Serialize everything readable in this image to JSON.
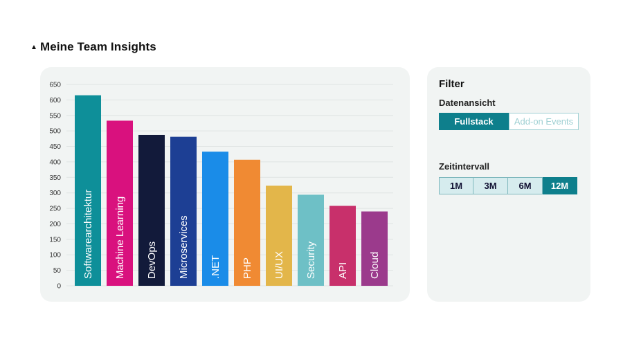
{
  "section": {
    "title": "Meine Team Insights"
  },
  "filter": {
    "title": "Filter",
    "datenansicht": {
      "label": "Datenansicht",
      "options": [
        "Fullstack",
        "Add-on Events"
      ],
      "selected": "Fullstack"
    },
    "zeitintervall": {
      "label": "Zeitintervall",
      "options": [
        "1M",
        "3M",
        "6M",
        "12M"
      ],
      "selected": "12M"
    }
  },
  "colors": {
    "accent": "#0e7f8c",
    "card_bg": "#f1f4f3"
  },
  "chart_data": {
    "type": "bar",
    "ylim": [
      0,
      650
    ],
    "yticks": [
      0,
      50,
      100,
      150,
      200,
      250,
      300,
      350,
      400,
      450,
      500,
      550,
      600,
      650
    ],
    "grid": true,
    "categories": [
      "Softwarearchitektur",
      "Machine Learning",
      "DevOps",
      "Microservices",
      ".NET",
      "PHP",
      "UI/UX",
      "Security",
      "API",
      "Cloud"
    ],
    "values": [
      615,
      533,
      487,
      481,
      433,
      407,
      323,
      294,
      258,
      240
    ],
    "colors": [
      "#0e8f99",
      "#d9117e",
      "#121a3a",
      "#1d3f94",
      "#1a8ce8",
      "#f08a33",
      "#e3b64a",
      "#6ec0c6",
      "#c8306b",
      "#9b3a8c"
    ]
  }
}
